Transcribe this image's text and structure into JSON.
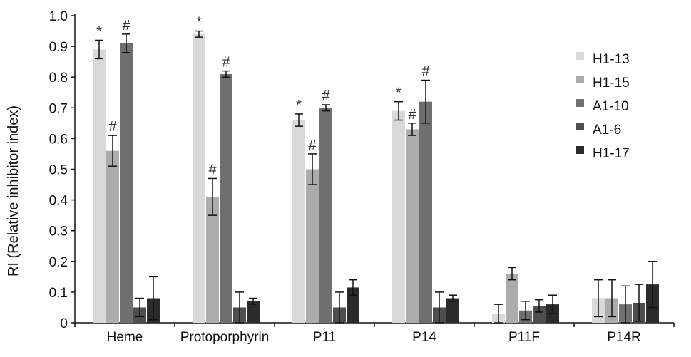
{
  "chart_data": {
    "type": "bar",
    "ylabel": "RI (Relative inhibitor index)",
    "xlabel": "",
    "ylim": [
      0,
      1.0
    ],
    "yticks": [
      "0",
      "0.1",
      "0.2",
      "0.3",
      "0.4",
      "0.5",
      "0.6",
      "0.7",
      "0.8",
      "0.9",
      "1.0"
    ],
    "categories": [
      "Heme",
      "Protoporphyrin",
      "P11",
      "P14",
      "P11F",
      "P14R"
    ],
    "legend_position": "right",
    "series": [
      {
        "name": "H1-13",
        "color": "#d9d9d9",
        "values": [
          0.89,
          0.94,
          0.66,
          0.69,
          0.03,
          0.08
        ],
        "errors": [
          0.03,
          0.01,
          0.02,
          0.03,
          0.03,
          0.06
        ],
        "marks": [
          "*",
          "*",
          "*",
          "*",
          "",
          ""
        ]
      },
      {
        "name": "H1-15",
        "color": "#acacac",
        "values": [
          0.56,
          0.41,
          0.5,
          0.63,
          0.16,
          0.08
        ],
        "errors": [
          0.05,
          0.06,
          0.05,
          0.02,
          0.02,
          0.06
        ],
        "marks": [
          "#",
          "#",
          "#",
          "#",
          "",
          ""
        ]
      },
      {
        "name": "A1-10",
        "color": "#6f6f6f",
        "values": [
          0.91,
          0.81,
          0.7,
          0.72,
          0.04,
          0.06
        ],
        "errors": [
          0.03,
          0.01,
          0.01,
          0.07,
          0.03,
          0.06
        ],
        "marks": [
          "#",
          "#",
          "#",
          "#",
          "",
          ""
        ]
      },
      {
        "name": "A1-6",
        "color": "#4e4e4e",
        "values": [
          0.05,
          0.05,
          0.05,
          0.05,
          0.055,
          0.065
        ],
        "errors": [
          0.03,
          0.05,
          0.05,
          0.05,
          0.02,
          0.06
        ],
        "marks": [
          "",
          "",
          "",
          "",
          "",
          ""
        ]
      },
      {
        "name": "H1-17",
        "color": "#2b2b2b",
        "values": [
          0.08,
          0.07,
          0.115,
          0.08,
          0.06,
          0.125
        ],
        "errors": [
          0.07,
          0.01,
          0.025,
          0.01,
          0.03,
          0.075
        ],
        "marks": [
          "",
          "",
          "",
          "",
          "",
          ""
        ]
      }
    ]
  }
}
